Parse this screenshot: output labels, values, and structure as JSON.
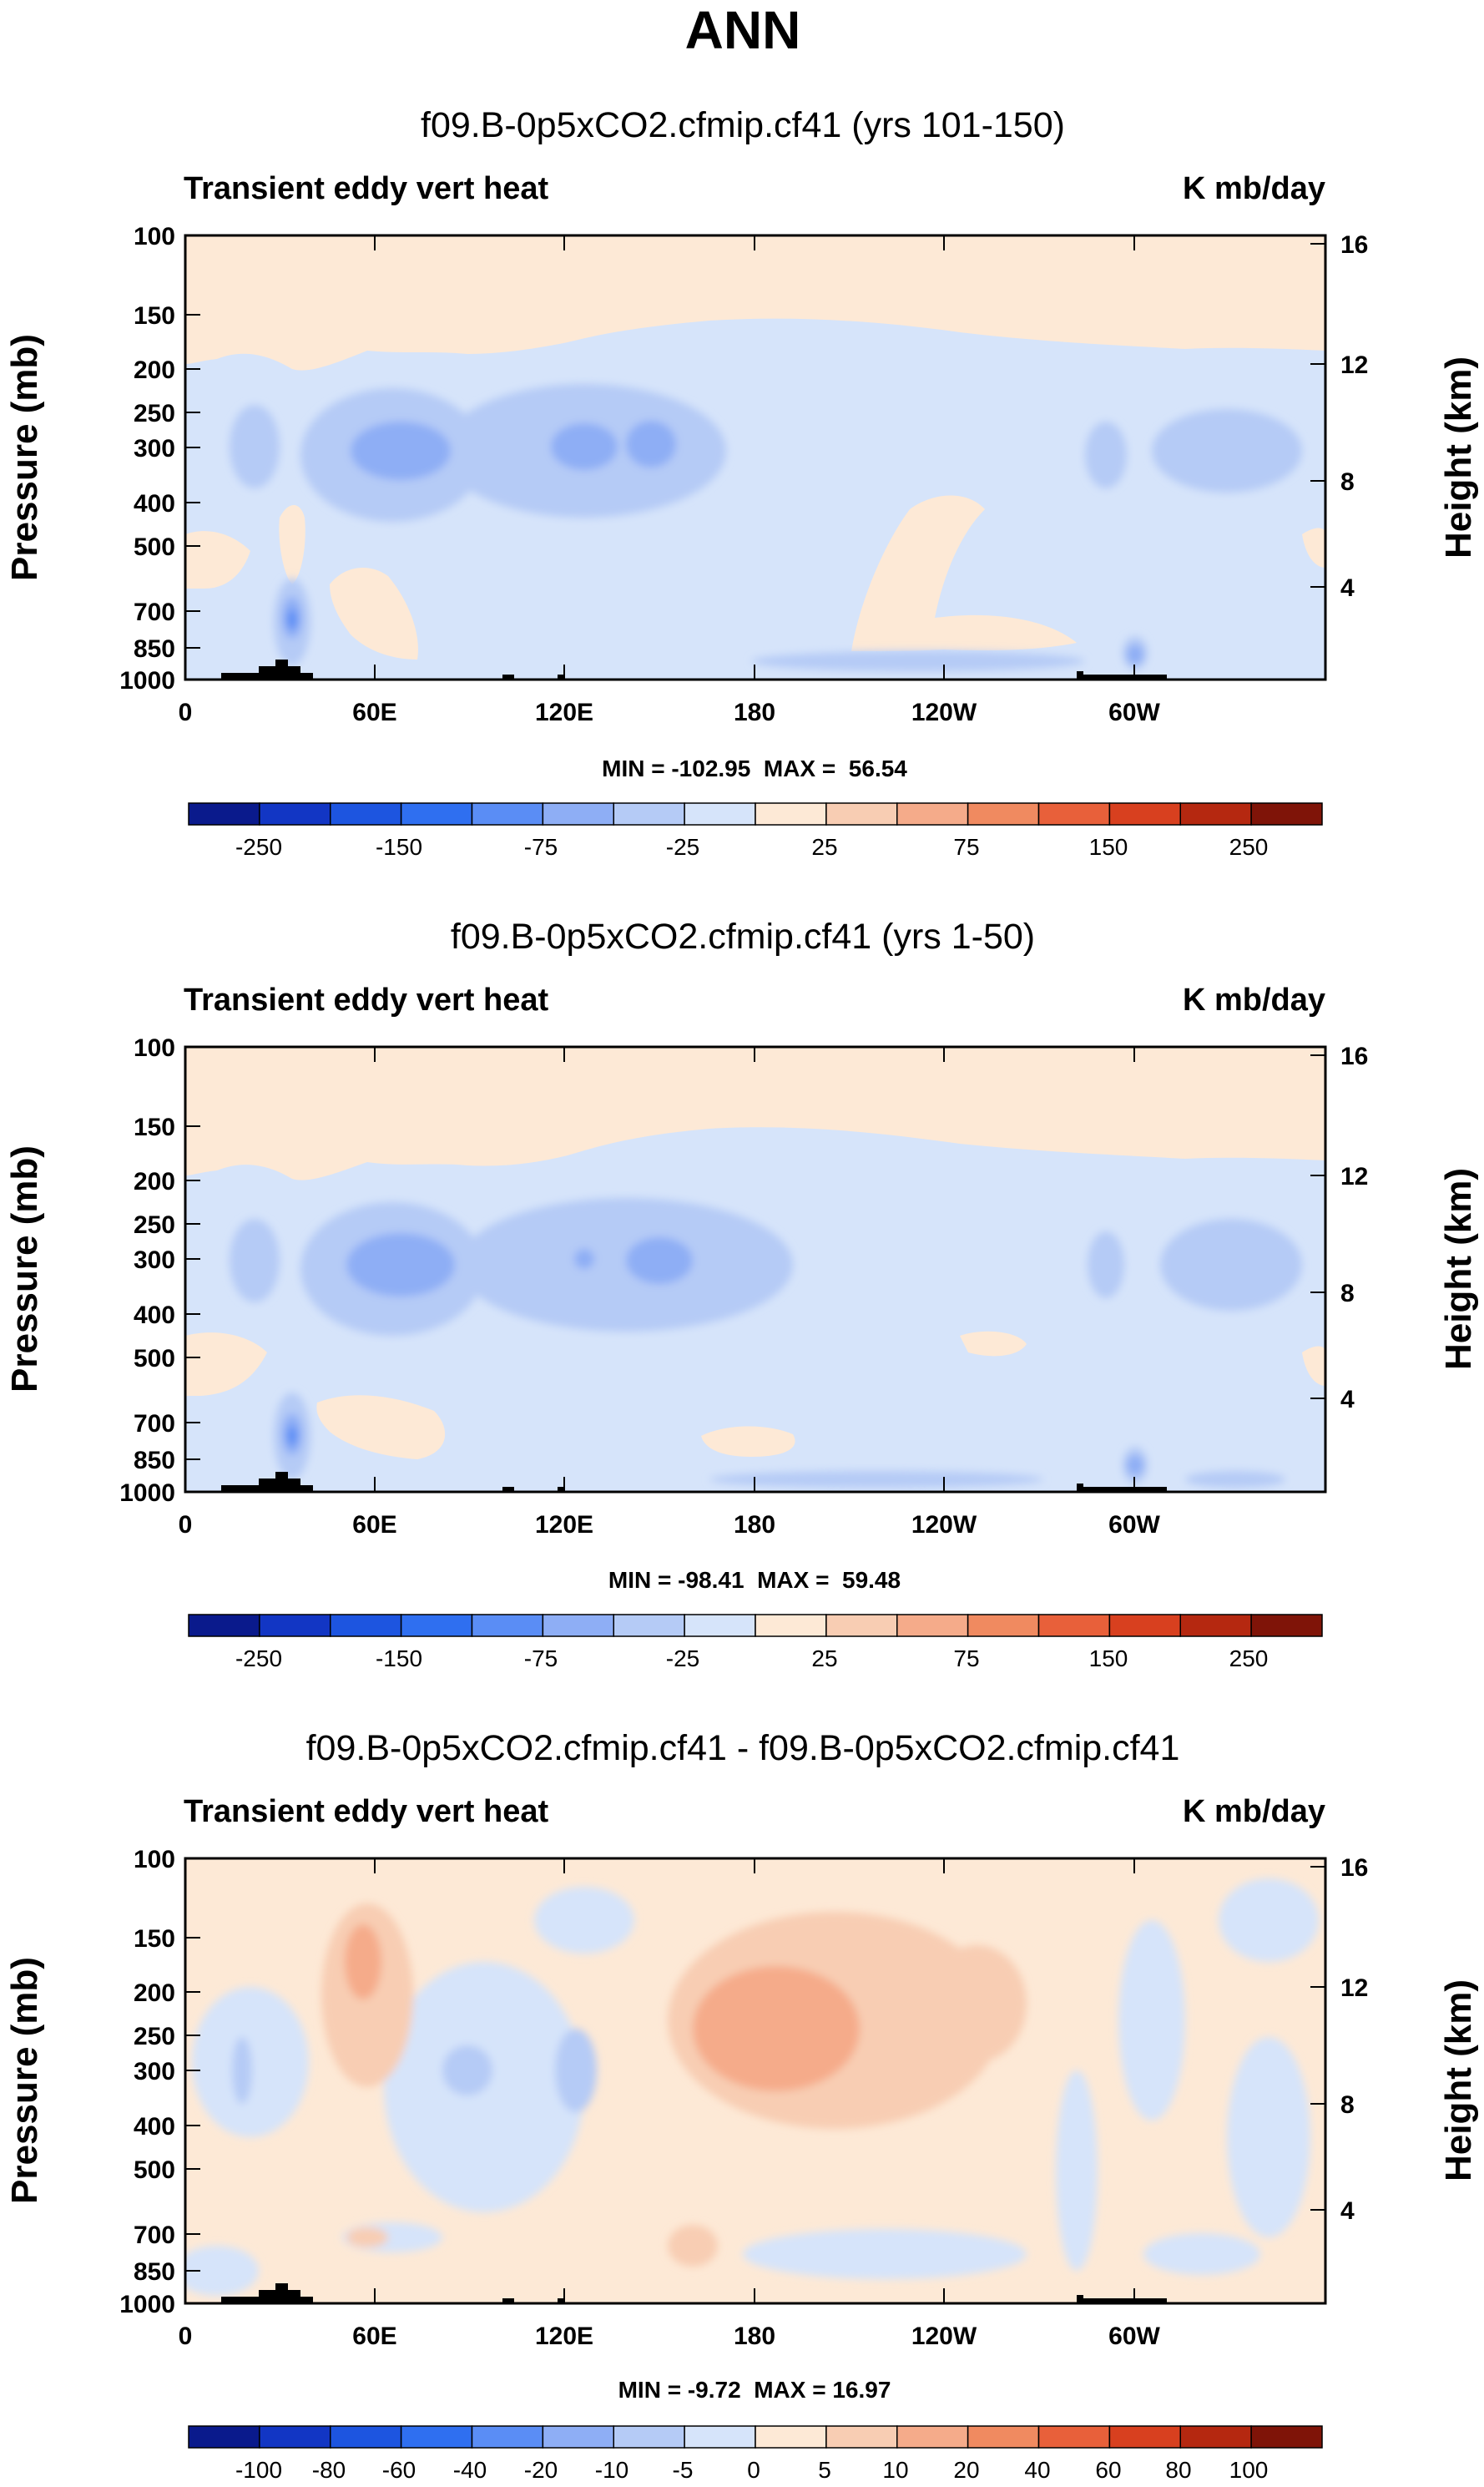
{
  "page_title": "ANN",
  "colors": {
    "palette_levels": [
      "#0a1a8c",
      "#1236c4",
      "#1d55e0",
      "#2f6ff0",
      "#5a8df5",
      "#8eaef5",
      "#b5cbf6",
      "#d6e4fa",
      "#fde9d6",
      "#f8cdb3",
      "#f5ab8a",
      "#f08a60",
      "#e8603a",
      "#d8401f",
      "#b52810",
      "#7f1408"
    ],
    "land_black": "#000000"
  },
  "chart_data": [
    {
      "type": "heatmap",
      "title": "f09.B-0p5xCO2.cfmip.cf41 (yrs 101-150)",
      "left_label": "Transient eddy vert heat",
      "right_label": "K mb/day",
      "ylabel": "Pressure (mb)",
      "ylabel_right": "Height (km)",
      "x_ticks": [
        "0",
        "60E",
        "120E",
        "180",
        "120W",
        "60W"
      ],
      "y_ticks": [
        "100",
        "150",
        "200",
        "250",
        "300",
        "400",
        "500",
        "700",
        "850",
        "1000"
      ],
      "y_ticks_right": [
        "16",
        "12",
        "8",
        "4"
      ],
      "stats": "MIN = -102.95  MAX =  56.54",
      "colorbar_labels": [
        "-250",
        "-150",
        "-75",
        "-25",
        "25",
        "75",
        "150",
        "250"
      ],
      "xlim": [
        0,
        360
      ],
      "ylim": [
        1000,
        100
      ]
    },
    {
      "type": "heatmap",
      "title": "f09.B-0p5xCO2.cfmip.cf41 (yrs 1-50)",
      "left_label": "Transient eddy vert heat",
      "right_label": "K mb/day",
      "ylabel": "Pressure (mb)",
      "ylabel_right": "Height (km)",
      "x_ticks": [
        "0",
        "60E",
        "120E",
        "180",
        "120W",
        "60W"
      ],
      "y_ticks": [
        "100",
        "150",
        "200",
        "250",
        "300",
        "400",
        "500",
        "700",
        "850",
        "1000"
      ],
      "y_ticks_right": [
        "16",
        "12",
        "8",
        "4"
      ],
      "stats": "MIN = -98.41  MAX =  59.48",
      "colorbar_labels": [
        "-250",
        "-150",
        "-75",
        "-25",
        "25",
        "75",
        "150",
        "250"
      ],
      "xlim": [
        0,
        360
      ],
      "ylim": [
        1000,
        100
      ]
    },
    {
      "type": "heatmap",
      "title": "f09.B-0p5xCO2.cfmip.cf41 - f09.B-0p5xCO2.cfmip.cf41",
      "left_label": "Transient eddy vert heat",
      "right_label": "K mb/day",
      "ylabel": "Pressure (mb)",
      "ylabel_right": "Height (km)",
      "x_ticks": [
        "0",
        "60E",
        "120E",
        "180",
        "120W",
        "60W"
      ],
      "y_ticks": [
        "100",
        "150",
        "200",
        "250",
        "300",
        "400",
        "500",
        "700",
        "850",
        "1000"
      ],
      "y_ticks_right": [
        "16",
        "12",
        "8",
        "4"
      ],
      "stats": "MIN = -9.72  MAX = 16.97",
      "colorbar_labels": [
        "-100",
        "-80",
        "-60",
        "-40",
        "-20",
        "-10",
        "-5",
        "0",
        "5",
        "10",
        "20",
        "40",
        "60",
        "80",
        "100"
      ],
      "xlim": [
        0,
        360
      ],
      "ylim": [
        1000,
        100
      ]
    }
  ]
}
